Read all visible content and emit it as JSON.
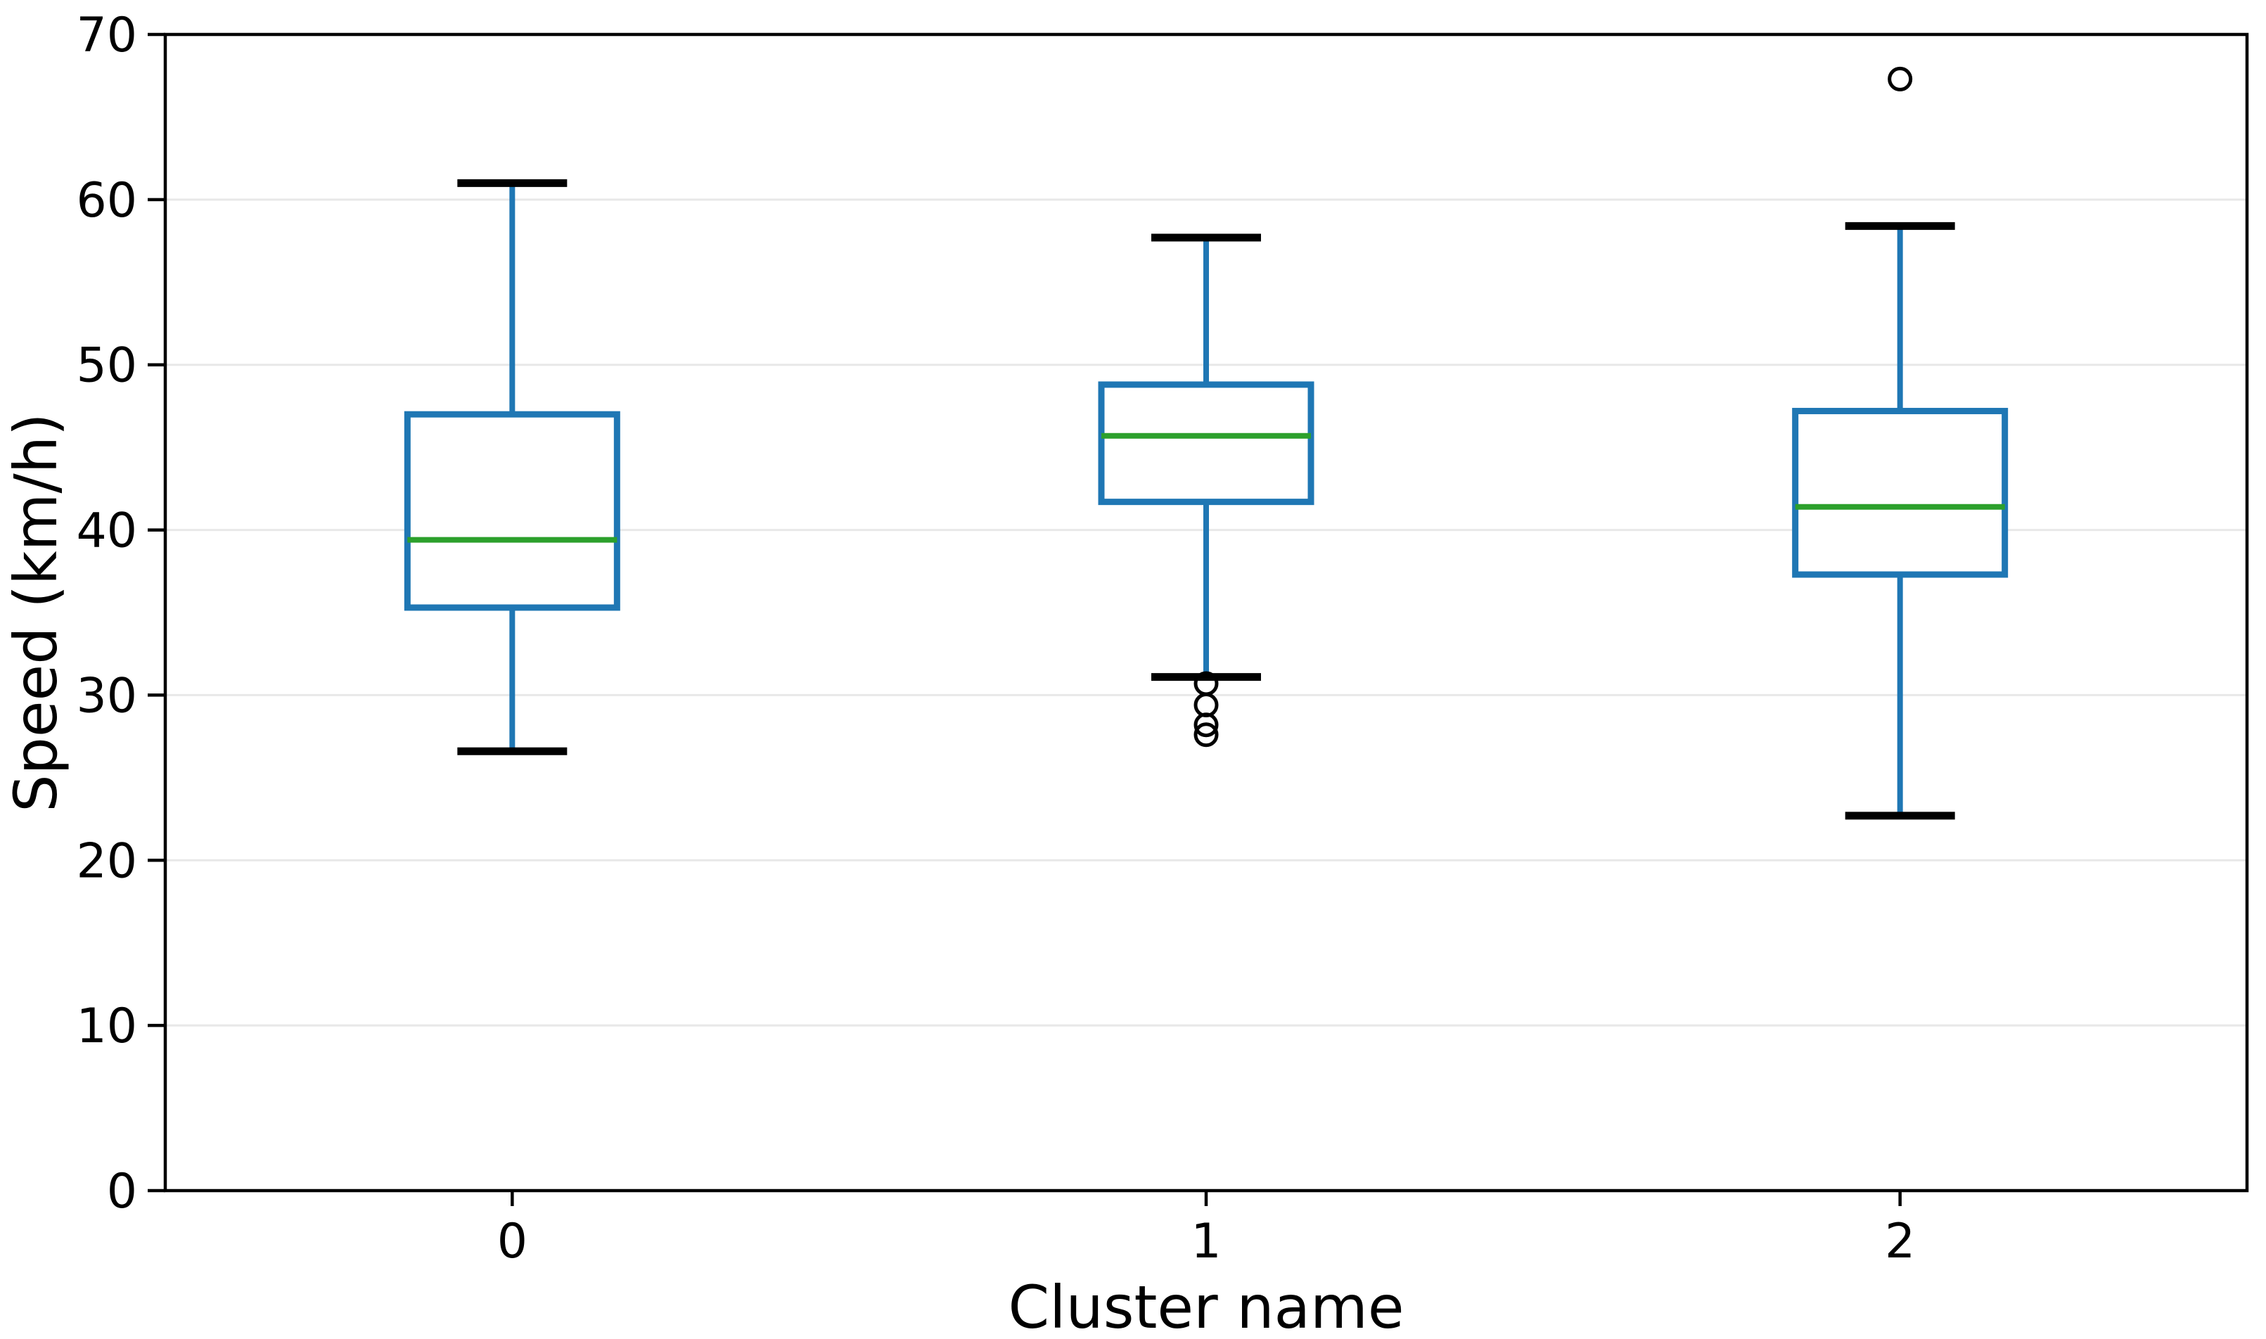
{
  "figure": {
    "kind": "matplotlib-style boxplot figure",
    "title": ""
  },
  "chart_data": {
    "type": "boxplot",
    "title": "",
    "xlabel": "Cluster name",
    "ylabel": "Speed (km/h)",
    "categories": [
      "0",
      "1",
      "2"
    ],
    "ylim": [
      0,
      70
    ],
    "yticks": [
      0,
      10,
      20,
      30,
      40,
      50,
      60,
      70
    ],
    "grid": "horizontal-light",
    "legend": "none",
    "colors": {
      "box": "#1f77b4",
      "whisker": "#1f77b4",
      "median": "#2ca02c",
      "cap": "#000000",
      "outlier_edge": "#000000",
      "gridline": "#e8e8e8",
      "axis": "#000000",
      "background": "#ffffff"
    },
    "series": [
      {
        "category": "0",
        "whisker_low": 26.6,
        "q1": 35.3,
        "median": 39.4,
        "q3": 47.0,
        "whisker_high": 61.0,
        "outliers": []
      },
      {
        "category": "1",
        "whisker_low": 31.1,
        "q1": 41.7,
        "median": 45.7,
        "q3": 48.8,
        "whisker_high": 57.7,
        "outliers": [
          30.7,
          29.4,
          28.2,
          27.6
        ]
      },
      {
        "category": "2",
        "whisker_low": 22.7,
        "q1": 37.3,
        "median": 41.4,
        "q3": 47.2,
        "whisker_high": 58.4,
        "outliers": [
          67.3
        ]
      }
    ]
  }
}
